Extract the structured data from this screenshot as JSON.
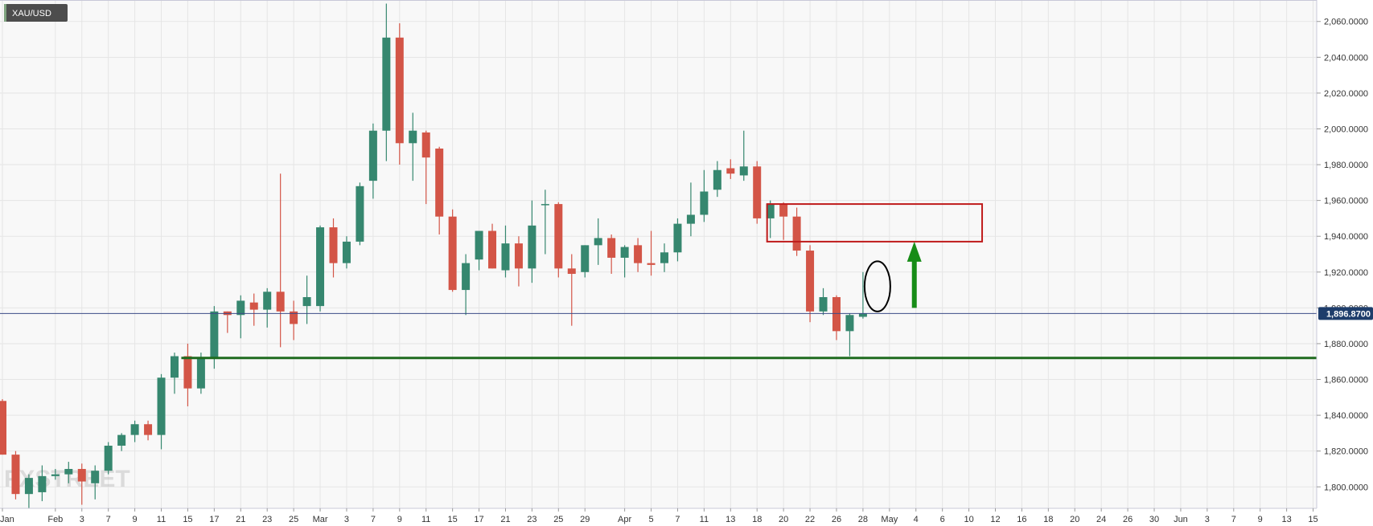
{
  "chart_data": {
    "type": "candlestick",
    "symbol": "XAU/USD",
    "watermark": "FXSTREET",
    "current_price": 1896.87,
    "current_price_label": "1,896.8700",
    "ylim": [
      1788,
      2072
    ],
    "y_ticks": [
      {
        "value": 1800,
        "label": "1,800.0000"
      },
      {
        "value": 1820,
        "label": "1,820.0000"
      },
      {
        "value": 1840,
        "label": "1,840.0000"
      },
      {
        "value": 1860,
        "label": "1,860.0000"
      },
      {
        "value": 1880,
        "label": "1,880.0000"
      },
      {
        "value": 1900,
        "label": "1,900.0000"
      },
      {
        "value": 1920,
        "label": "1,920.0000"
      },
      {
        "value": 1940,
        "label": "1,940.0000"
      },
      {
        "value": 1960,
        "label": "1,960.0000"
      },
      {
        "value": 1980,
        "label": "1,980.0000"
      },
      {
        "value": 2000,
        "label": "2,000.0000"
      },
      {
        "value": 2020,
        "label": "2,020.0000"
      },
      {
        "value": 2040,
        "label": "2,040.0000"
      },
      {
        "value": 2060,
        "label": "2,060.0000"
      }
    ],
    "x_ticks": [
      {
        "slot": 0,
        "label": "Jan"
      },
      {
        "slot": 4,
        "label": "Feb"
      },
      {
        "slot": 6,
        "label": "3"
      },
      {
        "slot": 8,
        "label": "7"
      },
      {
        "slot": 10,
        "label": "9"
      },
      {
        "slot": 12,
        "label": "11"
      },
      {
        "slot": 14,
        "label": "15"
      },
      {
        "slot": 16,
        "label": "17"
      },
      {
        "slot": 18,
        "label": "21"
      },
      {
        "slot": 20,
        "label": "23"
      },
      {
        "slot": 22,
        "label": "25"
      },
      {
        "slot": 24,
        "label": "Mar"
      },
      {
        "slot": 26,
        "label": "3"
      },
      {
        "slot": 28,
        "label": "7"
      },
      {
        "slot": 30,
        "label": "9"
      },
      {
        "slot": 32,
        "label": "11"
      },
      {
        "slot": 34,
        "label": "15"
      },
      {
        "slot": 36,
        "label": "17"
      },
      {
        "slot": 38,
        "label": "21"
      },
      {
        "slot": 40,
        "label": "23"
      },
      {
        "slot": 42,
        "label": "25"
      },
      {
        "slot": 44,
        "label": "29"
      },
      {
        "slot": 47,
        "label": "Apr"
      },
      {
        "slot": 49,
        "label": "5"
      },
      {
        "slot": 51,
        "label": "7"
      },
      {
        "slot": 53,
        "label": "11"
      },
      {
        "slot": 55,
        "label": "13"
      },
      {
        "slot": 57,
        "label": "18"
      },
      {
        "slot": 59,
        "label": "20"
      },
      {
        "slot": 61,
        "label": "22"
      },
      {
        "slot": 63,
        "label": "26"
      },
      {
        "slot": 65,
        "label": "28"
      },
      {
        "slot": 67,
        "label": "May"
      },
      {
        "slot": 69,
        "label": "4"
      },
      {
        "slot": 71,
        "label": "6"
      },
      {
        "slot": 73,
        "label": "10"
      },
      {
        "slot": 75,
        "label": "12"
      },
      {
        "slot": 77,
        "label": "16"
      },
      {
        "slot": 79,
        "label": "18"
      },
      {
        "slot": 81,
        "label": "20"
      },
      {
        "slot": 83,
        "label": "24"
      },
      {
        "slot": 85,
        "label": "26"
      },
      {
        "slot": 87,
        "label": "30"
      },
      {
        "slot": 89,
        "label": "Jun"
      },
      {
        "slot": 91,
        "label": "3"
      },
      {
        "slot": 93,
        "label": "7"
      },
      {
        "slot": 95,
        "label": "9"
      },
      {
        "slot": 97,
        "label": "13"
      },
      {
        "slot": 99,
        "label": "15"
      }
    ],
    "ohlc": [
      [
        1848,
        1849,
        1818,
        1818
      ],
      [
        1818,
        1820,
        1793,
        1796
      ],
      [
        1796,
        1807,
        1788,
        1805
      ],
      [
        1797,
        1812,
        1792,
        1806
      ],
      [
        1806,
        1810,
        1804,
        1807
      ],
      [
        1807,
        1814,
        1802,
        1810
      ],
      [
        1810,
        1813,
        1790,
        1803
      ],
      [
        1802,
        1812,
        1793,
        1809
      ],
      [
        1809,
        1825,
        1807,
        1823
      ],
      [
        1823,
        1830,
        1820,
        1829
      ],
      [
        1829,
        1837,
        1825,
        1835
      ],
      [
        1835,
        1837,
        1826,
        1829
      ],
      [
        1829,
        1863,
        1821,
        1861
      ],
      [
        1861,
        1875,
        1852,
        1873
      ],
      [
        1873,
        1880,
        1845,
        1855
      ],
      [
        1855,
        1875,
        1852,
        1872
      ],
      [
        1872,
        1901,
        1866,
        1898
      ],
      [
        1898,
        1898,
        1886,
        1896
      ],
      [
        1896,
        1907,
        1883,
        1904
      ],
      [
        1903,
        1908,
        1890,
        1899
      ],
      [
        1899,
        1911,
        1889,
        1909
      ],
      [
        1909,
        1975,
        1878,
        1898
      ],
      [
        1898,
        1904,
        1882,
        1891
      ],
      [
        1901,
        1918,
        1891,
        1906
      ],
      [
        1901,
        1946,
        1898,
        1945
      ],
      [
        1945,
        1950,
        1917,
        1925
      ],
      [
        1925,
        1940,
        1922,
        1937
      ],
      [
        1937,
        1970,
        1935,
        1968
      ],
      [
        1971,
        2003,
        1961,
        1999
      ],
      [
        1999,
        2070,
        1982,
        2051
      ],
      [
        2051,
        2059,
        1980,
        1992
      ],
      [
        1992,
        2009,
        1971,
        1999
      ],
      [
        1998,
        1999,
        1958,
        1984
      ],
      [
        1989,
        1990,
        1941,
        1951
      ],
      [
        1951,
        1955,
        1909,
        1910
      ],
      [
        1910,
        1930,
        1896,
        1925
      ],
      [
        1927,
        1941,
        1921,
        1943
      ],
      [
        1943,
        1947,
        1922,
        1922
      ],
      [
        1921,
        1946,
        1917,
        1936
      ],
      [
        1936,
        1940,
        1912,
        1922
      ],
      [
        1922,
        1960,
        1914,
        1946
      ],
      [
        1958,
        1966,
        1930,
        1958
      ],
      [
        1958,
        1959,
        1917,
        1922
      ],
      [
        1922,
        1930,
        1890,
        1919
      ],
      [
        1920,
        1935,
        1917,
        1935
      ],
      [
        1935,
        1950,
        1924,
        1939
      ],
      [
        1939,
        1941,
        1919,
        1928
      ],
      [
        1928,
        1935,
        1917,
        1934
      ],
      [
        1935,
        1939,
        1920,
        1925
      ],
      [
        1925,
        1943,
        1918,
        1924
      ],
      [
        1925,
        1936,
        1920,
        1931
      ],
      [
        1931,
        1950,
        1926,
        1947
      ],
      [
        1947,
        1970,
        1940,
        1952
      ],
      [
        1952,
        1977,
        1948,
        1965
      ],
      [
        1966,
        1982,
        1962,
        1977
      ],
      [
        1978,
        1983,
        1972,
        1975
      ],
      [
        1974,
        1999,
        1971,
        1979
      ],
      [
        1979,
        1982,
        1947,
        1950
      ],
      [
        1950,
        1960,
        1939,
        1958
      ],
      [
        1958,
        1959,
        1938,
        1951
      ],
      [
        1951,
        1956,
        1929,
        1932
      ],
      [
        1932,
        1935,
        1892,
        1898
      ],
      [
        1898,
        1911,
        1896,
        1906
      ],
      [
        1906,
        1907,
        1882,
        1887
      ],
      [
        1887,
        1897,
        1873,
        1896
      ],
      [
        1895,
        1920,
        1894,
        1897
      ]
    ],
    "support_level": 1872,
    "resistance_box": {
      "start_slot": 58,
      "end_slot": 74,
      "low": 1937,
      "high": 1958
    },
    "arrow": {
      "slot": 69,
      "from": 1900,
      "to": 1937
    },
    "ellipse": {
      "slot": 65,
      "low": 1898,
      "high": 1926
    },
    "colors": {
      "bull": "#36876f",
      "bear": "#d35547",
      "grid": "#e5e5e5",
      "background": "#f8f8f8",
      "support_line": "#1f6b1f",
      "resistance_box": "#bf1b1b",
      "arrow": "#178c17",
      "price_line": "#3b4a87",
      "price_tag": "#1e3d6b",
      "symbol_badge": "#4d4d4d"
    }
  }
}
